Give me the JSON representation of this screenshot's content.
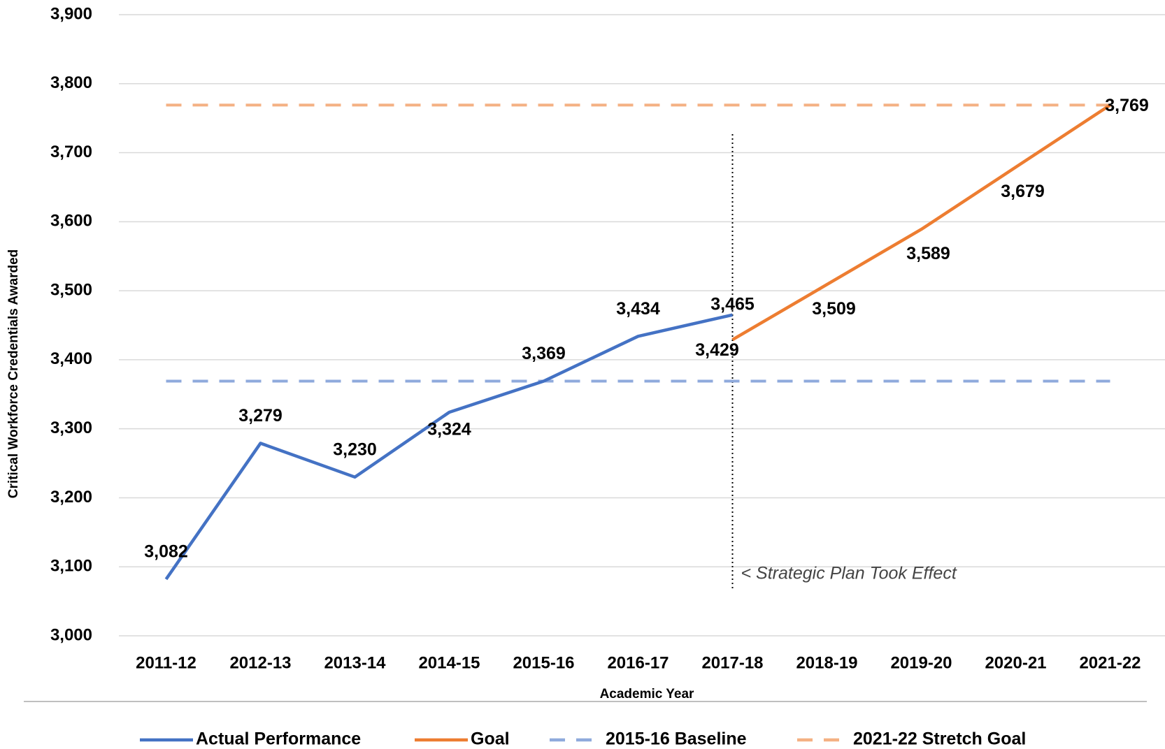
{
  "chart_data": {
    "type": "line",
    "x_label": "Academic Year",
    "y_label": "Critical Workforce Credentials Awarded",
    "categories": [
      "2011-12",
      "2012-13",
      "2013-14",
      "2014-15",
      "2015-16",
      "2016-17",
      "2017-18",
      "2018-19",
      "2019-20",
      "2020-21",
      "2021-22"
    ],
    "series": [
      {
        "name": "Actual Performance",
        "color": "#4472c4",
        "style": "solid",
        "values": [
          3082,
          3279,
          3230,
          3324,
          3369,
          3434,
          3465,
          null,
          null,
          null,
          null
        ],
        "value_labels": [
          "3,082",
          "3,279",
          "3,230",
          "3,324",
          "3,369",
          "3,434",
          "3,465",
          null,
          null,
          null,
          null
        ]
      },
      {
        "name": "Goal",
        "color": "#ed7d31",
        "style": "solid",
        "values": [
          null,
          null,
          null,
          null,
          null,
          null,
          3429,
          3509,
          3589,
          3679,
          3769
        ],
        "value_labels": [
          null,
          null,
          null,
          null,
          null,
          null,
          "3,429",
          "3,509",
          "3,589",
          "3,679",
          "3,769"
        ]
      },
      {
        "name": "2015-16 Baseline",
        "color": "#8faadc",
        "style": "dashed",
        "values": [
          3369,
          3369,
          3369,
          3369,
          3369,
          3369,
          3369,
          3369,
          3369,
          3369,
          3369
        ]
      },
      {
        "name": "2021-22 Stretch Goal",
        "color": "#f4b183",
        "style": "dashed",
        "values": [
          3769,
          3769,
          3769,
          3769,
          3769,
          3769,
          3769,
          3769,
          3769,
          3769,
          3769
        ]
      }
    ],
    "ylim": [
      3000,
      3900
    ],
    "yticks": [
      {
        "value": 3000,
        "label": "3,000"
      },
      {
        "value": 3100,
        "label": "3,100"
      },
      {
        "value": 3200,
        "label": "3,200"
      },
      {
        "value": 3300,
        "label": "3,300"
      },
      {
        "value": 3400,
        "label": "3,400"
      },
      {
        "value": 3500,
        "label": "3,500"
      },
      {
        "value": 3600,
        "label": "3,600"
      },
      {
        "value": 3700,
        "label": "3,700"
      },
      {
        "value": 3800,
        "label": "3,800"
      },
      {
        "value": 3900,
        "label": "3,900"
      }
    ],
    "grid": true,
    "legend": "bottom",
    "annotation": {
      "text": "< Strategic Plan Took Effect",
      "x": "2017-18"
    }
  }
}
